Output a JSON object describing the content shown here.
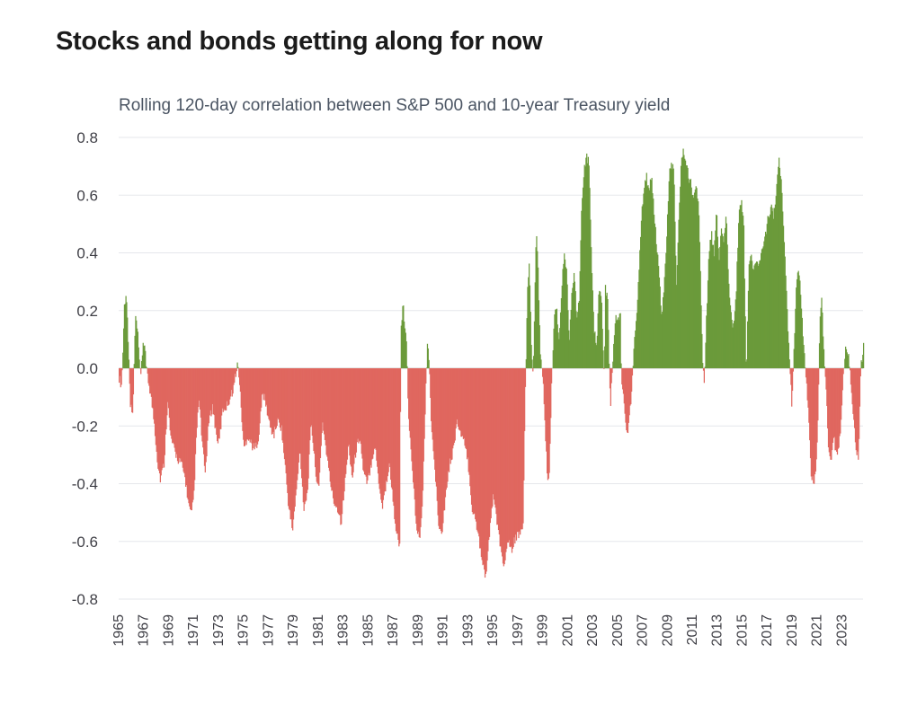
{
  "header": {
    "title": "Stocks and bonds getting along for now",
    "subtitle": "Rolling 120-day correlation between S&P 500 and 10-year Treasury yield"
  },
  "colors": {
    "positive": "#6b9a3a",
    "negative": "#e0675f",
    "grid": "#e5e7eb",
    "zero": "#c8c8c8"
  },
  "chart_data": {
    "type": "area",
    "title": "Stocks and bonds getting along for now",
    "subtitle": "Rolling 120-day correlation between S&P 500 and 10-year Treasury yield",
    "xlabel": "",
    "ylabel": "",
    "xlim": [
      1965.0,
      2024.7
    ],
    "ylim": [
      -0.8,
      0.8
    ],
    "yticks": [
      "0.8",
      "0.6",
      "0.4",
      "0.2",
      "0.0",
      "-0.2",
      "-0.4",
      "-0.6",
      "-0.8"
    ],
    "xticks": [
      "1965",
      "1967",
      "1969",
      "1971",
      "1973",
      "1975",
      "1977",
      "1979",
      "1981",
      "1983",
      "1985",
      "1987",
      "1989",
      "1991",
      "1993",
      "1995",
      "1997",
      "1999",
      "2001",
      "2003",
      "2005",
      "2007",
      "2009",
      "2011",
      "2013",
      "2015",
      "2017",
      "2019",
      "2021",
      "2023"
    ],
    "grid": true,
    "legend": "none",
    "series": [
      {
        "values": [
          [
            1965.0,
            -0.05
          ],
          [
            1965.2,
            -0.08
          ],
          [
            1965.4,
            0.22
          ],
          [
            1965.55,
            0.27
          ],
          [
            1965.7,
            0.15
          ],
          [
            1965.9,
            -0.15
          ],
          [
            1966.1,
            -0.18
          ],
          [
            1966.3,
            0.21
          ],
          [
            1966.5,
            0.15
          ],
          [
            1966.7,
            -0.05
          ],
          [
            1966.9,
            0.1
          ],
          [
            1967.1,
            0.08
          ],
          [
            1967.3,
            -0.05
          ],
          [
            1967.5,
            -0.1
          ],
          [
            1967.8,
            -0.2
          ],
          [
            1968.1,
            -0.35
          ],
          [
            1968.3,
            -0.4
          ],
          [
            1968.6,
            -0.35
          ],
          [
            1968.9,
            -0.12
          ],
          [
            1969.1,
            -0.25
          ],
          [
            1969.4,
            -0.3
          ],
          [
            1969.7,
            -0.33
          ],
          [
            1970.0,
            -0.35
          ],
          [
            1970.3,
            -0.4
          ],
          [
            1970.6,
            -0.5
          ],
          [
            1970.8,
            -0.53
          ],
          [
            1971.0,
            -0.45
          ],
          [
            1971.2,
            -0.25
          ],
          [
            1971.4,
            -0.12
          ],
          [
            1971.7,
            -0.3
          ],
          [
            1971.9,
            -0.38
          ],
          [
            1972.2,
            -0.2
          ],
          [
            1972.5,
            -0.15
          ],
          [
            1972.8,
            -0.25
          ],
          [
            1973.0,
            -0.28
          ],
          [
            1973.3,
            -0.16
          ],
          [
            1973.6,
            -0.15
          ],
          [
            1973.9,
            -0.12
          ],
          [
            1974.2,
            -0.08
          ],
          [
            1974.4,
            -0.02
          ],
          [
            1974.5,
            0.03
          ],
          [
            1974.7,
            -0.1
          ],
          [
            1975.0,
            -0.3
          ],
          [
            1975.3,
            -0.25
          ],
          [
            1975.6,
            -0.28
          ],
          [
            1975.9,
            -0.3
          ],
          [
            1976.2,
            -0.25
          ],
          [
            1976.5,
            -0.1
          ],
          [
            1976.8,
            -0.15
          ],
          [
            1977.1,
            -0.22
          ],
          [
            1977.4,
            -0.25
          ],
          [
            1977.7,
            -0.2
          ],
          [
            1978.0,
            -0.22
          ],
          [
            1978.3,
            -0.35
          ],
          [
            1978.6,
            -0.5
          ],
          [
            1978.9,
            -0.58
          ],
          [
            1979.2,
            -0.45
          ],
          [
            1979.5,
            -0.3
          ],
          [
            1979.8,
            -0.5
          ],
          [
            1980.1,
            -0.45
          ],
          [
            1980.4,
            -0.2
          ],
          [
            1980.7,
            -0.35
          ],
          [
            1981.0,
            -0.45
          ],
          [
            1981.3,
            -0.2
          ],
          [
            1981.6,
            -0.3
          ],
          [
            1981.9,
            -0.4
          ],
          [
            1982.2,
            -0.48
          ],
          [
            1982.5,
            -0.5
          ],
          [
            1982.8,
            -0.55
          ],
          [
            1983.1,
            -0.42
          ],
          [
            1983.4,
            -0.28
          ],
          [
            1983.7,
            -0.4
          ],
          [
            1984.0,
            -0.3
          ],
          [
            1984.3,
            -0.25
          ],
          [
            1984.6,
            -0.38
          ],
          [
            1984.9,
            -0.42
          ],
          [
            1985.2,
            -0.35
          ],
          [
            1985.5,
            -0.28
          ],
          [
            1985.8,
            -0.4
          ],
          [
            1986.1,
            -0.5
          ],
          [
            1986.4,
            -0.42
          ],
          [
            1986.7,
            -0.35
          ],
          [
            1987.0,
            -0.5
          ],
          [
            1987.3,
            -0.6
          ],
          [
            1987.5,
            -0.64
          ],
          [
            1987.6,
            0.15
          ],
          [
            1987.75,
            0.24
          ],
          [
            1987.9,
            0.18
          ],
          [
            1988.05,
            0.12
          ],
          [
            1988.2,
            -0.2
          ],
          [
            1988.5,
            -0.35
          ],
          [
            1988.8,
            -0.55
          ],
          [
            1989.1,
            -0.62
          ],
          [
            1989.3,
            -0.5
          ],
          [
            1989.5,
            -0.25
          ],
          [
            1989.7,
            0.1
          ],
          [
            1989.85,
            0.05
          ],
          [
            1990.0,
            -0.2
          ],
          [
            1990.3,
            -0.35
          ],
          [
            1990.6,
            -0.55
          ],
          [
            1990.9,
            -0.58
          ],
          [
            1991.2,
            -0.45
          ],
          [
            1991.5,
            -0.35
          ],
          [
            1991.8,
            -0.3
          ],
          [
            1992.1,
            -0.2
          ],
          [
            1992.4,
            -0.25
          ],
          [
            1992.7,
            -0.28
          ],
          [
            1993.0,
            -0.35
          ],
          [
            1993.3,
            -0.5
          ],
          [
            1993.6,
            -0.55
          ],
          [
            1993.9,
            -0.62
          ],
          [
            1994.2,
            -0.7
          ],
          [
            1994.4,
            -0.74
          ],
          [
            1994.7,
            -0.6
          ],
          [
            1995.0,
            -0.45
          ],
          [
            1995.3,
            -0.55
          ],
          [
            1995.6,
            -0.65
          ],
          [
            1995.9,
            -0.7
          ],
          [
            1996.2,
            -0.62
          ],
          [
            1996.5,
            -0.65
          ],
          [
            1996.8,
            -0.6
          ],
          [
            1997.1,
            -0.6
          ],
          [
            1997.4,
            -0.55
          ],
          [
            1997.6,
            -0.05
          ],
          [
            1997.75,
            0.3
          ],
          [
            1997.9,
            0.38
          ],
          [
            1998.1,
            0.05
          ],
          [
            1998.2,
            -0.05
          ],
          [
            1998.35,
            0.3
          ],
          [
            1998.45,
            0.5
          ],
          [
            1998.6,
            0.35
          ],
          [
            1998.8,
            0.05
          ],
          [
            1999.0,
            -0.05
          ],
          [
            1999.15,
            -0.2
          ],
          [
            1999.35,
            -0.42
          ],
          [
            1999.5,
            -0.38
          ],
          [
            1999.7,
            -0.05
          ],
          [
            1999.9,
            0.2
          ],
          [
            2000.1,
            0.22
          ],
          [
            2000.3,
            0.1
          ],
          [
            2000.5,
            0.3
          ],
          [
            2000.7,
            0.43
          ],
          [
            2000.9,
            0.35
          ],
          [
            2001.1,
            0.1
          ],
          [
            2001.3,
            0.28
          ],
          [
            2001.5,
            0.35
          ],
          [
            2001.7,
            0.2
          ],
          [
            2001.9,
            0.25
          ],
          [
            2002.1,
            0.6
          ],
          [
            2002.3,
            0.72
          ],
          [
            2002.5,
            0.75
          ],
          [
            2002.7,
            0.73
          ],
          [
            2002.9,
            0.35
          ],
          [
            2003.1,
            0.15
          ],
          [
            2003.3,
            0.1
          ],
          [
            2003.5,
            0.3
          ],
          [
            2003.7,
            0.25
          ],
          [
            2003.9,
            -0.05
          ],
          [
            2004.0,
            0.3
          ],
          [
            2004.2,
            0.25
          ],
          [
            2004.4,
            -0.17
          ],
          [
            2004.6,
            0.05
          ],
          [
            2004.8,
            0.2
          ],
          [
            2005.0,
            0.18
          ],
          [
            2005.2,
            0.2
          ],
          [
            2005.3,
            -0.05
          ],
          [
            2005.5,
            -0.15
          ],
          [
            2005.7,
            -0.25
          ],
          [
            2005.9,
            -0.2
          ],
          [
            2006.1,
            -0.1
          ],
          [
            2006.3,
            0.1
          ],
          [
            2006.5,
            0.2
          ],
          [
            2006.7,
            0.35
          ],
          [
            2006.9,
            0.55
          ],
          [
            2007.1,
            0.65
          ],
          [
            2007.3,
            0.68
          ],
          [
            2007.5,
            0.62
          ],
          [
            2007.7,
            0.7
          ],
          [
            2007.9,
            0.55
          ],
          [
            2008.1,
            0.45
          ],
          [
            2008.3,
            0.35
          ],
          [
            2008.5,
            0.2
          ],
          [
            2008.7,
            0.3
          ],
          [
            2008.9,
            0.45
          ],
          [
            2009.1,
            0.68
          ],
          [
            2009.3,
            0.73
          ],
          [
            2009.5,
            0.7
          ],
          [
            2009.7,
            0.3
          ],
          [
            2009.9,
            0.55
          ],
          [
            2010.1,
            0.75
          ],
          [
            2010.3,
            0.77
          ],
          [
            2010.5,
            0.72
          ],
          [
            2010.7,
            0.68
          ],
          [
            2010.9,
            0.65
          ],
          [
            2011.1,
            0.6
          ],
          [
            2011.3,
            0.65
          ],
          [
            2011.5,
            0.55
          ],
          [
            2011.7,
            0.2
          ],
          [
            2011.9,
            -0.1
          ],
          [
            2012.1,
            0.2
          ],
          [
            2012.3,
            0.4
          ],
          [
            2012.5,
            0.5
          ],
          [
            2012.7,
            0.4
          ],
          [
            2012.9,
            0.58
          ],
          [
            2013.1,
            0.4
          ],
          [
            2013.3,
            0.5
          ],
          [
            2013.5,
            0.45
          ],
          [
            2013.7,
            0.55
          ],
          [
            2013.9,
            0.3
          ],
          [
            2014.1,
            0.2
          ],
          [
            2014.3,
            0.15
          ],
          [
            2014.5,
            0.3
          ],
          [
            2014.7,
            0.55
          ],
          [
            2014.9,
            0.6
          ],
          [
            2015.1,
            0.5
          ],
          [
            2015.3,
            -0.03
          ],
          [
            2015.5,
            0.38
          ],
          [
            2015.7,
            0.42
          ],
          [
            2015.9,
            0.35
          ],
          [
            2016.1,
            0.4
          ],
          [
            2016.3,
            0.38
          ],
          [
            2016.5,
            0.42
          ],
          [
            2016.7,
            0.45
          ],
          [
            2016.9,
            0.5
          ],
          [
            2017.1,
            0.55
          ],
          [
            2017.3,
            0.58
          ],
          [
            2017.5,
            0.55
          ],
          [
            2017.7,
            0.62
          ],
          [
            2017.9,
            0.74
          ],
          [
            2018.1,
            0.68
          ],
          [
            2018.3,
            0.5
          ],
          [
            2018.5,
            0.3
          ],
          [
            2018.7,
            0.1
          ],
          [
            2018.85,
            -0.05
          ],
          [
            2018.95,
            -0.18
          ],
          [
            2019.1,
            0.05
          ],
          [
            2019.3,
            0.3
          ],
          [
            2019.5,
            0.38
          ],
          [
            2019.7,
            0.25
          ],
          [
            2019.9,
            0.1
          ],
          [
            2020.1,
            -0.05
          ],
          [
            2020.3,
            -0.2
          ],
          [
            2020.5,
            -0.38
          ],
          [
            2020.7,
            -0.42
          ],
          [
            2020.9,
            -0.35
          ],
          [
            2021.05,
            -0.2
          ],
          [
            2021.2,
            0.2
          ],
          [
            2021.35,
            0.27
          ],
          [
            2021.5,
            0.1
          ],
          [
            2021.7,
            -0.1
          ],
          [
            2021.9,
            -0.3
          ],
          [
            2022.1,
            -0.35
          ],
          [
            2022.3,
            -0.25
          ],
          [
            2022.5,
            -0.32
          ],
          [
            2022.7,
            -0.3
          ],
          [
            2022.9,
            -0.2
          ],
          [
            2023.1,
            0.0
          ],
          [
            2023.3,
            0.1
          ],
          [
            2023.5,
            0.05
          ],
          [
            2023.7,
            -0.1
          ],
          [
            2023.9,
            -0.2
          ],
          [
            2024.1,
            -0.3
          ],
          [
            2024.3,
            -0.33
          ],
          [
            2024.5,
            0.02
          ],
          [
            2024.7,
            0.1
          ]
        ]
      }
    ]
  }
}
